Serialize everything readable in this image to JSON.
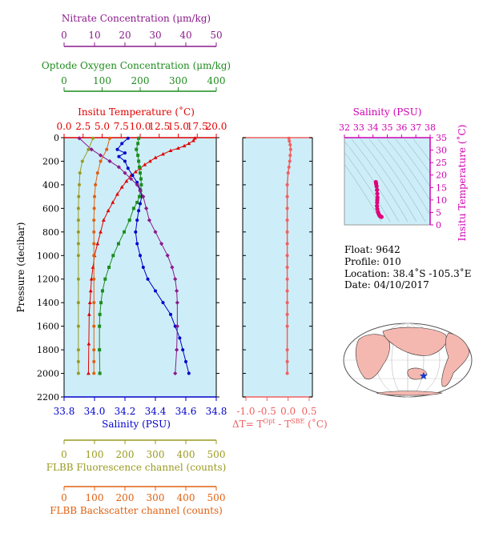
{
  "colors": {
    "nitrate": "#8b1a8b",
    "oxygen": "#1e8c1e",
    "temperature": "#e00000",
    "salinity": "#0000cc",
    "fluorescence": "#9a9a20",
    "backscatter": "#e06010",
    "delta_t": "#f06060",
    "ts_axis": "#d000b0",
    "ts_points": "#e0007a",
    "plot_bg": "#cdeef8",
    "axis": "#000000",
    "frame": "#999999"
  },
  "labels": {
    "nitrate": "Nitrate Concentration (μm/kg)",
    "oxygen": "Optode Oxygen Concentration (μm/kg)",
    "temperature": "Insitu Temperature (˚C)",
    "salinity": "Salinity (PSU)",
    "fluorescence": "FLBB Fluorescence channel (counts)",
    "backscatter": "FLBB Backscatter channel (counts)",
    "pressure": "Pressure (decibar)",
    "delta_t": "ΔT= T",
    "delta_t_sup1": "Opt",
    "delta_t_mid": " - T",
    "delta_t_sup2": "SBE",
    "delta_t_unit": " (˚C)",
    "ts_x": "Salinity (PSU)",
    "ts_y": "Insitu Temperature (˚C)"
  },
  "info": {
    "float": "Float:  9642",
    "profile": "Profile:  010",
    "location": "Location:  38.4˚S  -105.3˚E",
    "date": "Date:  04/10/2017"
  },
  "chart_data": [
    {
      "type": "line",
      "panel": "profile",
      "y_axis": {
        "label": "Pressure (decibar)",
        "ylim": [
          2200,
          0
        ],
        "ticks": [
          0,
          200,
          400,
          600,
          800,
          1000,
          1200,
          1400,
          1600,
          1800,
          2000,
          2200
        ],
        "inverted": true
      },
      "axes": {
        "nitrate": {
          "xlim": [
            0,
            50
          ],
          "ticks": [
            0,
            10,
            20,
            30,
            40,
            50
          ]
        },
        "oxygen": {
          "xlim": [
            0,
            400
          ],
          "ticks": [
            0,
            100,
            200,
            300,
            400
          ]
        },
        "temperature": {
          "xlim": [
            0,
            20
          ],
          "ticks": [
            "0.0",
            "2.5",
            "5.0",
            "7.5",
            "10.0",
            "12.5",
            "15.0",
            "17.5",
            "20.0"
          ]
        },
        "salinity": {
          "xlim": [
            33.8,
            34.8
          ],
          "ticks": [
            "33.8",
            "34.0",
            "34.2",
            "34.4",
            "34.6",
            "34.8"
          ]
        },
        "fluorescence": {
          "xlim": [
            0,
            500
          ],
          "ticks": [
            0,
            100,
            200,
            300,
            400,
            500
          ]
        },
        "backscatter": {
          "xlim": [
            0,
            500
          ],
          "ticks": [
            0,
            100,
            200,
            300,
            400,
            500
          ]
        }
      },
      "series": [
        {
          "key": "temperature",
          "axis": "temperature",
          "marker": "triangle",
          "x": [
            17.2,
            17.0,
            16.4,
            15.8,
            15.0,
            14.0,
            13.0,
            12.0,
            11.3,
            10.6,
            10.0,
            9.4,
            8.8,
            8.2,
            7.6,
            7.0,
            6.4,
            5.8,
            5.2,
            4.8,
            4.4,
            4.0,
            3.8,
            3.6,
            3.5,
            3.4,
            3.3,
            3.25,
            3.2
          ],
          "y": [
            5,
            25,
            50,
            70,
            90,
            110,
            140,
            170,
            200,
            230,
            260,
            290,
            320,
            370,
            420,
            480,
            550,
            620,
            700,
            800,
            900,
            1000,
            1100,
            1200,
            1300,
            1400,
            1500,
            1750,
            2000
          ]
        },
        {
          "key": "salinity",
          "axis": "salinity",
          "marker": "circle",
          "x": [
            34.22,
            34.18,
            34.15,
            34.2,
            34.16,
            34.2,
            34.22,
            34.25,
            34.28,
            34.3,
            34.31,
            34.3,
            34.29,
            34.28,
            34.27,
            34.28,
            34.3,
            34.32,
            34.35,
            34.4,
            34.45,
            34.5,
            34.53,
            34.56,
            34.58,
            34.6,
            34.62
          ],
          "y": [
            5,
            50,
            100,
            130,
            160,
            200,
            260,
            320,
            380,
            440,
            500,
            560,
            620,
            700,
            800,
            900,
            1000,
            1100,
            1200,
            1300,
            1400,
            1500,
            1600,
            1700,
            1800,
            1900,
            2000
          ]
        },
        {
          "key": "oxygen",
          "axis": "oxygen",
          "marker": "square",
          "x": [
            196,
            194,
            190,
            194,
            196,
            198,
            200,
            202,
            203,
            201,
            198,
            192,
            183,
            172,
            158,
            143,
            129,
            118,
            108,
            101,
            97,
            94,
            93,
            93,
            94
          ],
          "y": [
            5,
            50,
            100,
            150,
            200,
            250,
            300,
            350,
            400,
            450,
            500,
            550,
            600,
            700,
            800,
            900,
            1000,
            1100,
            1200,
            1300,
            1400,
            1500,
            1600,
            1800,
            2000
          ]
        },
        {
          "key": "nitrate",
          "axis": "nitrate",
          "marker": "diamond",
          "x": [
            5,
            9,
            12,
            15,
            18,
            20,
            22,
            24,
            25,
            26,
            27,
            28,
            30,
            32,
            34,
            35.5,
            36.5,
            37,
            37.2,
            37.2,
            37,
            36.5
          ],
          "y": [
            5,
            100,
            150,
            200,
            250,
            300,
            350,
            400,
            450,
            500,
            600,
            700,
            800,
            900,
            1000,
            1100,
            1200,
            1300,
            1400,
            1600,
            1800,
            2000
          ]
        },
        {
          "key": "fluorescence",
          "axis": "fluorescence",
          "marker": "circle",
          "x": [
            95,
            80,
            60,
            52,
            50,
            48,
            47,
            47,
            47,
            47,
            47,
            47,
            47,
            47,
            47,
            47,
            47
          ],
          "y": [
            5,
            100,
            200,
            300,
            400,
            500,
            600,
            700,
            800,
            900,
            1000,
            1200,
            1400,
            1600,
            1800,
            1900,
            2000
          ]
        },
        {
          "key": "backscatter",
          "axis": "backscatter",
          "marker": "circle",
          "x": [
            150,
            140,
            120,
            110,
            103,
            100,
            99,
            98,
            98,
            98,
            98,
            98,
            98,
            98,
            98,
            98,
            98
          ],
          "y": [
            5,
            100,
            200,
            300,
            400,
            500,
            600,
            700,
            800,
            900,
            1000,
            1200,
            1400,
            1600,
            1800,
            1900,
            2000
          ]
        }
      ]
    },
    {
      "type": "line",
      "panel": "delta_t",
      "xlim": [
        -1.0,
        0.5
      ],
      "x_ticks": [
        "-1.0",
        "-0.5",
        "0.0",
        "0.5"
      ],
      "ylim": [
        2200,
        0
      ],
      "series": [
        {
          "key": "delta_t",
          "x": [
            0.02,
            0.03,
            0.05,
            0.06,
            0.05,
            0.04,
            0.02,
            0.0,
            -0.02,
            -0.02,
            -0.02,
            -0.02,
            -0.02,
            -0.02,
            -0.02,
            -0.02,
            -0.02,
            -0.02,
            -0.02,
            -0.02,
            -0.02,
            -0.02,
            -0.02,
            -0.02
          ],
          "y": [
            5,
            30,
            60,
            100,
            150,
            200,
            250,
            300,
            400,
            500,
            600,
            700,
            800,
            900,
            1000,
            1100,
            1200,
            1300,
            1400,
            1500,
            1600,
            1800,
            1900,
            2000
          ]
        }
      ]
    },
    {
      "type": "scatter",
      "panel": "ts_diagram",
      "xlim": [
        32,
        38
      ],
      "x_ticks": [
        32,
        33,
        34,
        35,
        36,
        37,
        38
      ],
      "ylim": [
        0,
        35
      ],
      "y_ticks": [
        0,
        5,
        10,
        15,
        20,
        25,
        30,
        35
      ],
      "series": [
        {
          "key": "ts",
          "x": [
            34.2,
            34.22,
            34.25,
            34.28,
            34.3,
            34.31,
            34.3,
            34.29,
            34.28,
            34.3,
            34.35,
            34.4,
            34.45,
            34.5,
            34.55,
            34.6
          ],
          "y": [
            17.2,
            16.5,
            15.5,
            14.0,
            12.5,
            11.0,
            10.0,
            9.0,
            7.6,
            6.4,
            5.2,
            4.4,
            3.8,
            3.5,
            3.3,
            3.2
          ]
        }
      ]
    },
    {
      "type": "map",
      "panel": "location_map",
      "marker": {
        "lat": -38.4,
        "lon": -105.3
      }
    }
  ]
}
